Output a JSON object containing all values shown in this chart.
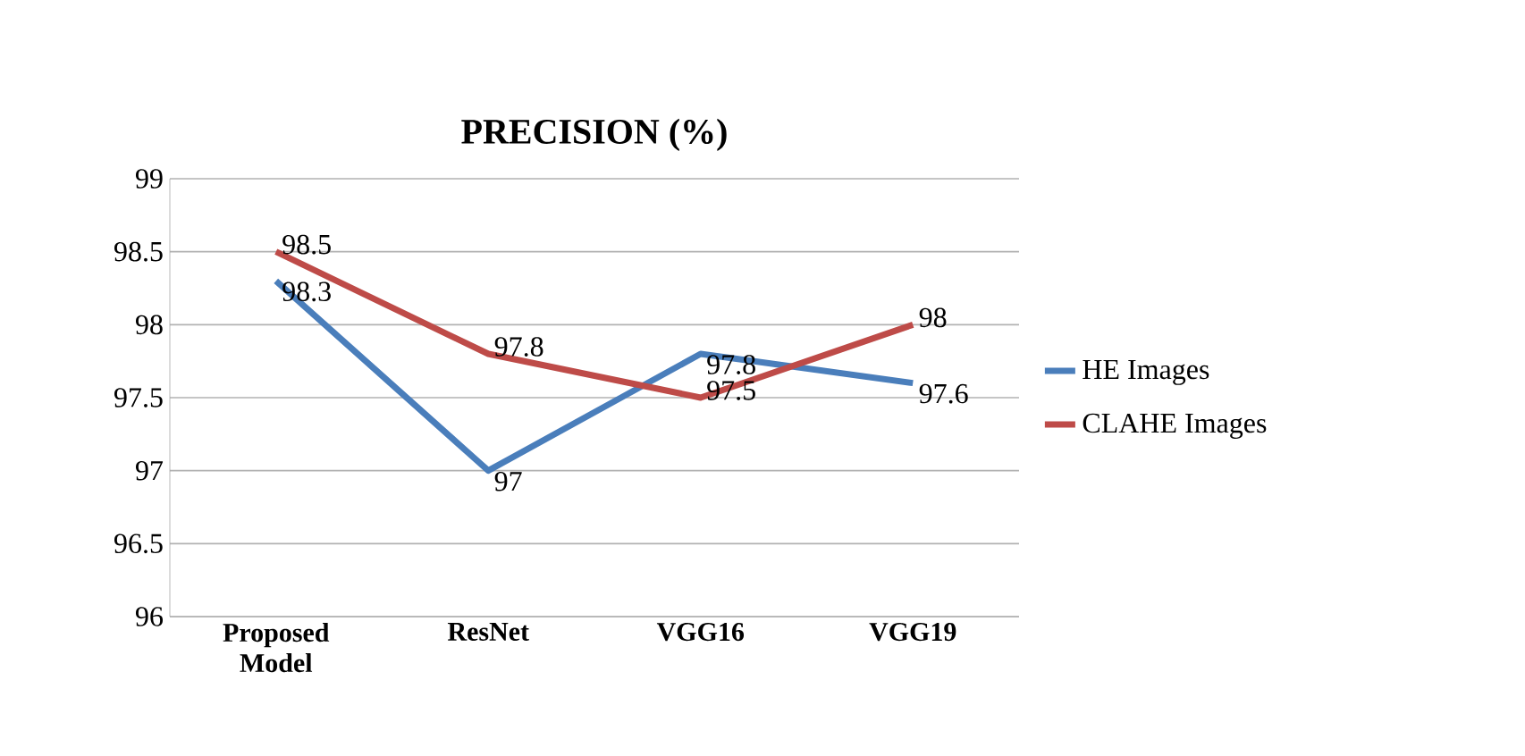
{
  "chart_data": {
    "type": "line",
    "title": "PRECISION (%)",
    "categories": [
      "Proposed Model",
      "ResNet",
      "VGG16",
      "VGG19"
    ],
    "series": [
      {
        "name": "HE Images",
        "color": "#4a7ebb",
        "values": [
          98.3,
          97,
          97.8,
          97.6
        ]
      },
      {
        "name": "CLAHE Images",
        "color": "#be4b48",
        "values": [
          98.5,
          97.8,
          97.5,
          98
        ]
      }
    ],
    "ylim": [
      96,
      99
    ],
    "yticks": [
      96,
      96.5,
      97,
      97.5,
      98,
      98.5,
      99
    ],
    "grid": "y",
    "legend": "right",
    "data_labels": true,
    "marker": "none",
    "line_style": "solid"
  }
}
